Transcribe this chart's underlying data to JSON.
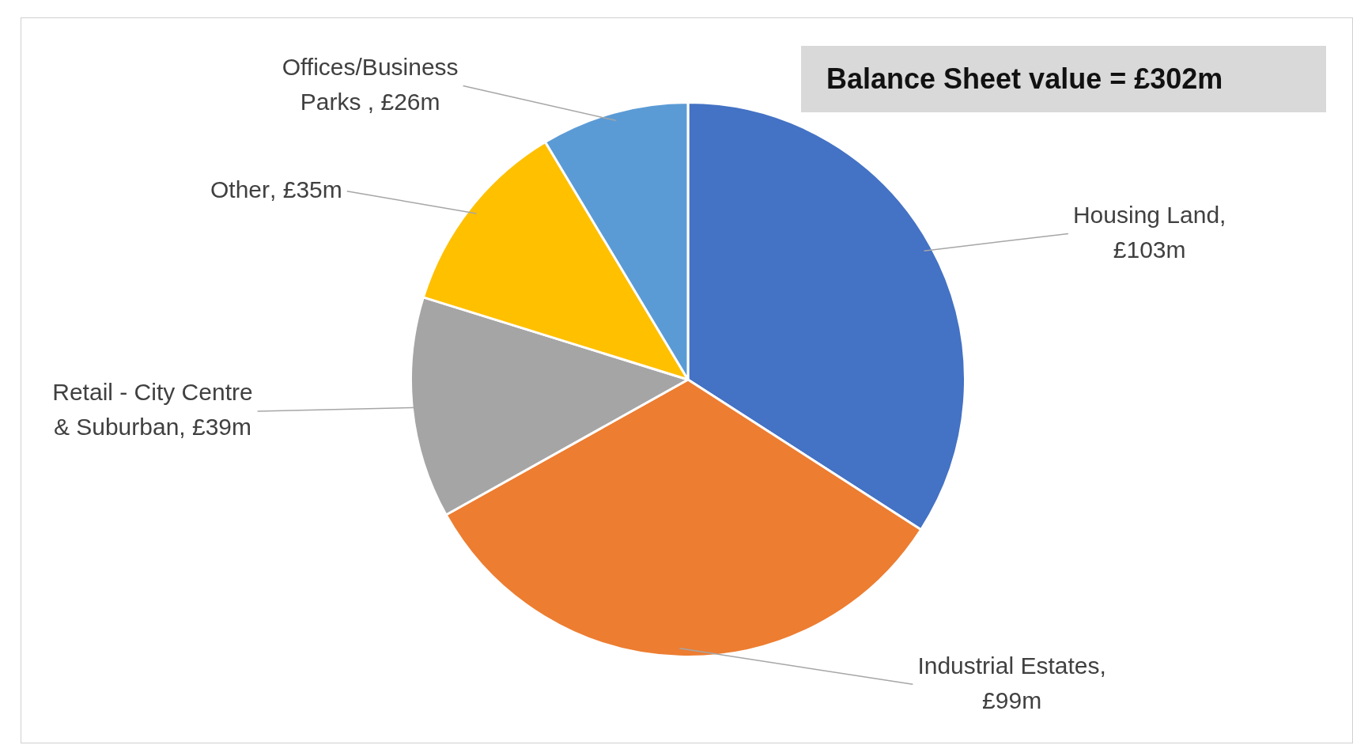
{
  "chart_data": {
    "type": "pie",
    "categories": [
      "Housing Land",
      "Industrial Estates",
      "Retail - City Centre & Suburban",
      "Other",
      "Offices/Business Parks "
    ],
    "values": [
      103,
      99,
      39,
      35,
      26
    ],
    "colors": [
      "#4472c4",
      "#ed7d31",
      "#a5a5a5",
      "#ffc000",
      "#5b9bd5"
    ],
    "value_labels": [
      ", £103m",
      ", £99m",
      ", £39m",
      ", £35m",
      ", £26m"
    ],
    "annotations": [
      "Balance Sheet value = £302m"
    ]
  }
}
